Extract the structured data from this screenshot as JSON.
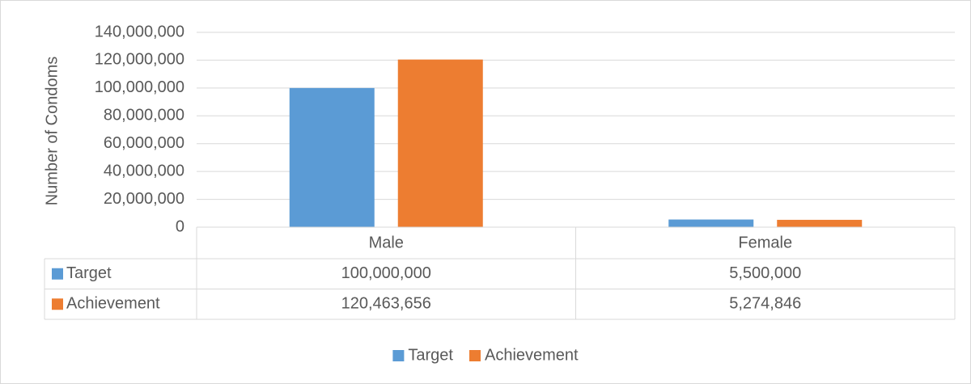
{
  "chart_data": {
    "type": "bar",
    "y_label": "Number of Condoms",
    "categories": [
      "Male",
      "Female"
    ],
    "series": [
      {
        "name": "Target",
        "color": "#5b9bd5",
        "values": [
          100000000,
          5500000
        ],
        "value_labels": [
          "100,000,000",
          "5,500,000"
        ]
      },
      {
        "name": "Achievement",
        "color": "#ed7d31",
        "values": [
          120463656,
          5274846
        ],
        "value_labels": [
          "120,463,656",
          "5,274,846"
        ]
      }
    ],
    "ylim": [
      0,
      140000000
    ],
    "yticks": [
      0,
      {
        "value": 20000000,
        "label": "20,000,000"
      },
      {
        "value": 40000000,
        "label": "40,000,000"
      },
      {
        "value": 60000000,
        "label": "60,000,000"
      },
      {
        "value": 80000000,
        "label": "80,000,000"
      },
      {
        "value": 100000000,
        "label": "100,000,000"
      },
      {
        "value": 120000000,
        "label": "120,000,000"
      },
      {
        "value": 140000000,
        "label": "140,000,000"
      }
    ],
    "grid": true,
    "legend": "bottom",
    "data_table": true
  }
}
